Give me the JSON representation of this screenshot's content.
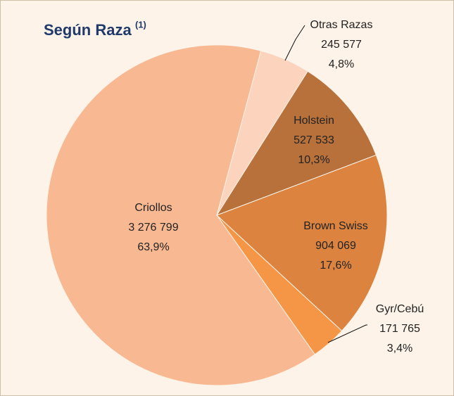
{
  "chart_data": {
    "type": "pie",
    "title": "Según Raza",
    "title_note": "(1)",
    "categories": [
      "Otras Razas",
      "Holstein",
      "Brown Swiss",
      "Gyr/Cebú",
      "Criollos"
    ],
    "values": [
      245577,
      527533,
      904069,
      171765,
      3276799
    ],
    "value_labels": [
      "245 577",
      "527 533",
      "904 069",
      "171 765",
      "3 276 799"
    ],
    "percents": [
      4.8,
      10.3,
      17.6,
      3.4,
      63.9
    ],
    "percent_labels": [
      "4,8%",
      "10,3%",
      "17,6%",
      "3,4%",
      "63,9%"
    ],
    "colors": [
      "#fcd3bd",
      "#b8713a",
      "#dc843f",
      "#f59647",
      "#f8b992"
    ]
  }
}
